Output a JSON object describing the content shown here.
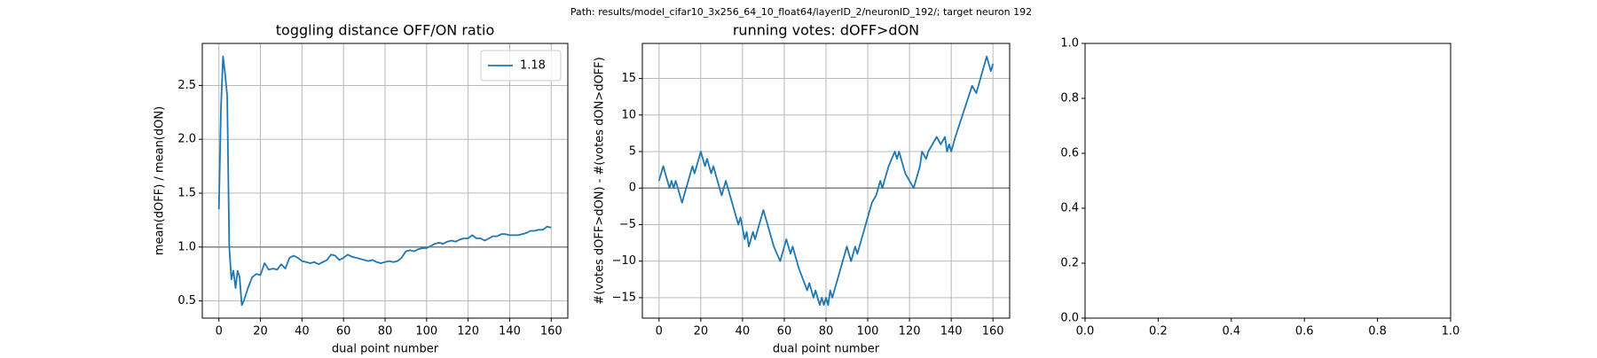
{
  "suptitle": "Path: results/model_cifar10_3x256_64_10_float64/layerID_2/neuronID_192/; target neuron 192",
  "chart_data": [
    {
      "type": "line",
      "title": "toggling distance OFF/ON ratio",
      "xlabel": "dual point number",
      "ylabel": "mean(dOFF) / mean(dON)",
      "grid": true,
      "legend": "upper right",
      "hline": 1.0,
      "hline_color": "#808080",
      "xlim": [
        -8,
        168
      ],
      "ylim": [
        0.34,
        2.89
      ],
      "xticks": [
        0,
        20,
        40,
        60,
        80,
        100,
        120,
        140,
        160
      ],
      "yticks": [
        0.5,
        {
          "value": 1.0,
          "label": "1.0"
        },
        1.5,
        {
          "value": 2.0,
          "label": "2.0"
        },
        2.5
      ],
      "x": [
        0,
        1,
        2,
        3,
        4,
        5,
        6,
        7,
        8,
        9,
        10,
        11,
        12,
        14,
        16,
        18,
        20,
        22,
        24,
        26,
        28,
        30,
        32,
        34,
        36,
        38,
        40,
        42,
        44,
        46,
        48,
        50,
        52,
        54,
        56,
        58,
        60,
        62,
        64,
        66,
        68,
        70,
        72,
        74,
        76,
        78,
        80,
        82,
        84,
        86,
        88,
        90,
        92,
        94,
        96,
        98,
        100,
        102,
        104,
        106,
        108,
        110,
        112,
        114,
        116,
        118,
        120,
        122,
        124,
        126,
        128,
        130,
        132,
        134,
        136,
        138,
        140,
        142,
        144,
        146,
        148,
        150,
        152,
        154,
        156,
        158,
        160
      ],
      "series": [
        {
          "name": "1.18",
          "color": "#1f77b4",
          "values": [
            1.35,
            2.3,
            2.77,
            2.6,
            2.4,
            1.0,
            0.7,
            0.78,
            0.62,
            0.78,
            0.72,
            0.46,
            0.5,
            0.62,
            0.72,
            0.75,
            0.74,
            0.85,
            0.79,
            0.8,
            0.79,
            0.84,
            0.8,
            0.9,
            0.92,
            0.9,
            0.87,
            0.86,
            0.85,
            0.86,
            0.84,
            0.86,
            0.88,
            0.93,
            0.92,
            0.88,
            0.9,
            0.93,
            0.91,
            0.9,
            0.89,
            0.88,
            0.87,
            0.88,
            0.86,
            0.85,
            0.86,
            0.87,
            0.86,
            0.87,
            0.9,
            0.96,
            0.97,
            0.96,
            0.98,
            0.99,
            0.99,
            1.01,
            1.03,
            1.04,
            1.03,
            1.05,
            1.06,
            1.05,
            1.07,
            1.08,
            1.08,
            1.11,
            1.08,
            1.08,
            1.06,
            1.08,
            1.1,
            1.1,
            1.12,
            1.12,
            1.11,
            1.11,
            1.11,
            1.12,
            1.13,
            1.15,
            1.15,
            1.16,
            1.16,
            1.19,
            1.18
          ]
        }
      ]
    },
    {
      "type": "line",
      "title": "running votes: dOFF>dON",
      "xlabel": "dual point number",
      "ylabel": "#(votes dOFF>dON) - #(votes dON>dOFF)",
      "grid": true,
      "hline": 0,
      "hline_color": "#808080",
      "xlim": [
        -8,
        168
      ],
      "ylim": [
        -17.8,
        19.8
      ],
      "xticks": [
        0,
        20,
        40,
        60,
        80,
        100,
        120,
        140,
        160
      ],
      "yticks": [
        {
          "value": -15,
          "label": "−15"
        },
        {
          "value": -10,
          "label": "−10"
        },
        {
          "value": -5,
          "label": "−5"
        },
        0,
        5,
        10,
        15
      ],
      "x": [
        0,
        2,
        5,
        6,
        7,
        8,
        11,
        13,
        16,
        17,
        20,
        22,
        23,
        25,
        26,
        29,
        30,
        32,
        34,
        38,
        39,
        41,
        42,
        43,
        45,
        46,
        50,
        55,
        58,
        61,
        63,
        64,
        66,
        67,
        71,
        72,
        74,
        75,
        77,
        78,
        79,
        80,
        81,
        82,
        83,
        87,
        90,
        92,
        94,
        95,
        97,
        99,
        100,
        102,
        104,
        106,
        107,
        109,
        110,
        113,
        114,
        115,
        117,
        118,
        122,
        125,
        126,
        128,
        129,
        133,
        135,
        137,
        138,
        139,
        140,
        141,
        142,
        150,
        152,
        157,
        159,
        160
      ],
      "series": [
        {
          "color": "#1f77b4",
          "values": [
            1,
            3,
            0,
            1,
            0,
            1,
            -2,
            0,
            3,
            2,
            5,
            3,
            4,
            2,
            3,
            0,
            -1,
            1,
            -1,
            -5,
            -4,
            -7,
            -6,
            -8,
            -6,
            -7,
            -3,
            -8,
            -10,
            -7,
            -9,
            -8,
            -10,
            -11,
            -14,
            -13,
            -15,
            -14,
            -16,
            -15,
            -16,
            -15,
            -16,
            -14,
            -15,
            -11,
            -8,
            -10,
            -8,
            -9,
            -7,
            -5,
            -4,
            -2,
            -1,
            1,
            0,
            2,
            3,
            5,
            4,
            5,
            3,
            2,
            0,
            3,
            5,
            4,
            5,
            7,
            6,
            7,
            5,
            6,
            5,
            6,
            7,
            14,
            13,
            18,
            16,
            17
          ]
        }
      ]
    },
    {
      "type": "empty",
      "grid": false,
      "xlim": [
        0,
        1
      ],
      "ylim": [
        0,
        1
      ],
      "xticks": [
        {
          "value": 0,
          "label": "0.0"
        },
        0.2,
        0.4,
        0.6,
        0.8,
        {
          "value": 1,
          "label": "1.0"
        }
      ],
      "yticks": [
        {
          "value": 0,
          "label": "0.0"
        },
        0.2,
        0.4,
        0.6,
        0.8,
        {
          "value": 1,
          "label": "1.0"
        }
      ]
    }
  ]
}
